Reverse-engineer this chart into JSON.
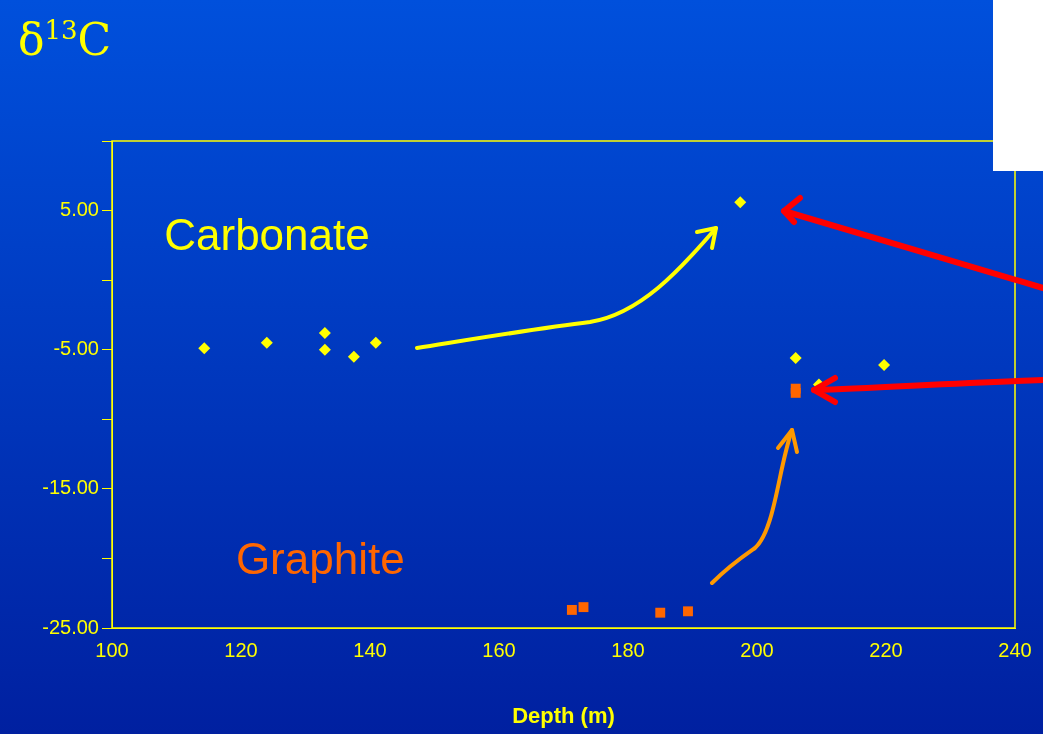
{
  "chart_data": {
    "type": "scatter",
    "title": "δ$^{13}$C",
    "xlabel": "Depth (m)",
    "xlim": [
      100,
      240
    ],
    "xticks": [
      100,
      120,
      140,
      160,
      180,
      200,
      220,
      240
    ],
    "ylim": [
      -25,
      10
    ],
    "yticks": [
      {
        "value": -25,
        "label": "-25.00"
      },
      {
        "value": -20,
        "label": null
      },
      {
        "value": -15,
        "label": "-15.00"
      },
      {
        "value": -10,
        "label": null
      },
      {
        "value": -5,
        "label": "-5.00"
      },
      {
        "value": 0,
        "label": null
      },
      {
        "value": 5,
        "label": "5.00"
      },
      {
        "value": 10,
        "label": null
      }
    ],
    "grid": false,
    "legend": false,
    "series": [
      {
        "name": "Carbonate",
        "color": "#ffff00",
        "marker": "diamond",
        "x": [
          114.3,
          124.0,
          133.0,
          133.0,
          137.5,
          140.9,
          197.4,
          206.0,
          209.6,
          219.7
        ],
        "values": [
          -4.9,
          -4.5,
          -3.8,
          -5.0,
          -5.5,
          -4.5,
          5.6,
          -5.6,
          -7.5,
          -6.1
        ]
      },
      {
        "name": "Graphite",
        "color": "#ff6600",
        "marker": "square",
        "x": [
          171.3,
          173.1,
          185.0,
          189.3,
          206.0,
          206.0
        ],
        "values": [
          -23.7,
          -23.5,
          -23.9,
          -23.8,
          -7.8,
          -8.1
        ]
      }
    ]
  }
}
